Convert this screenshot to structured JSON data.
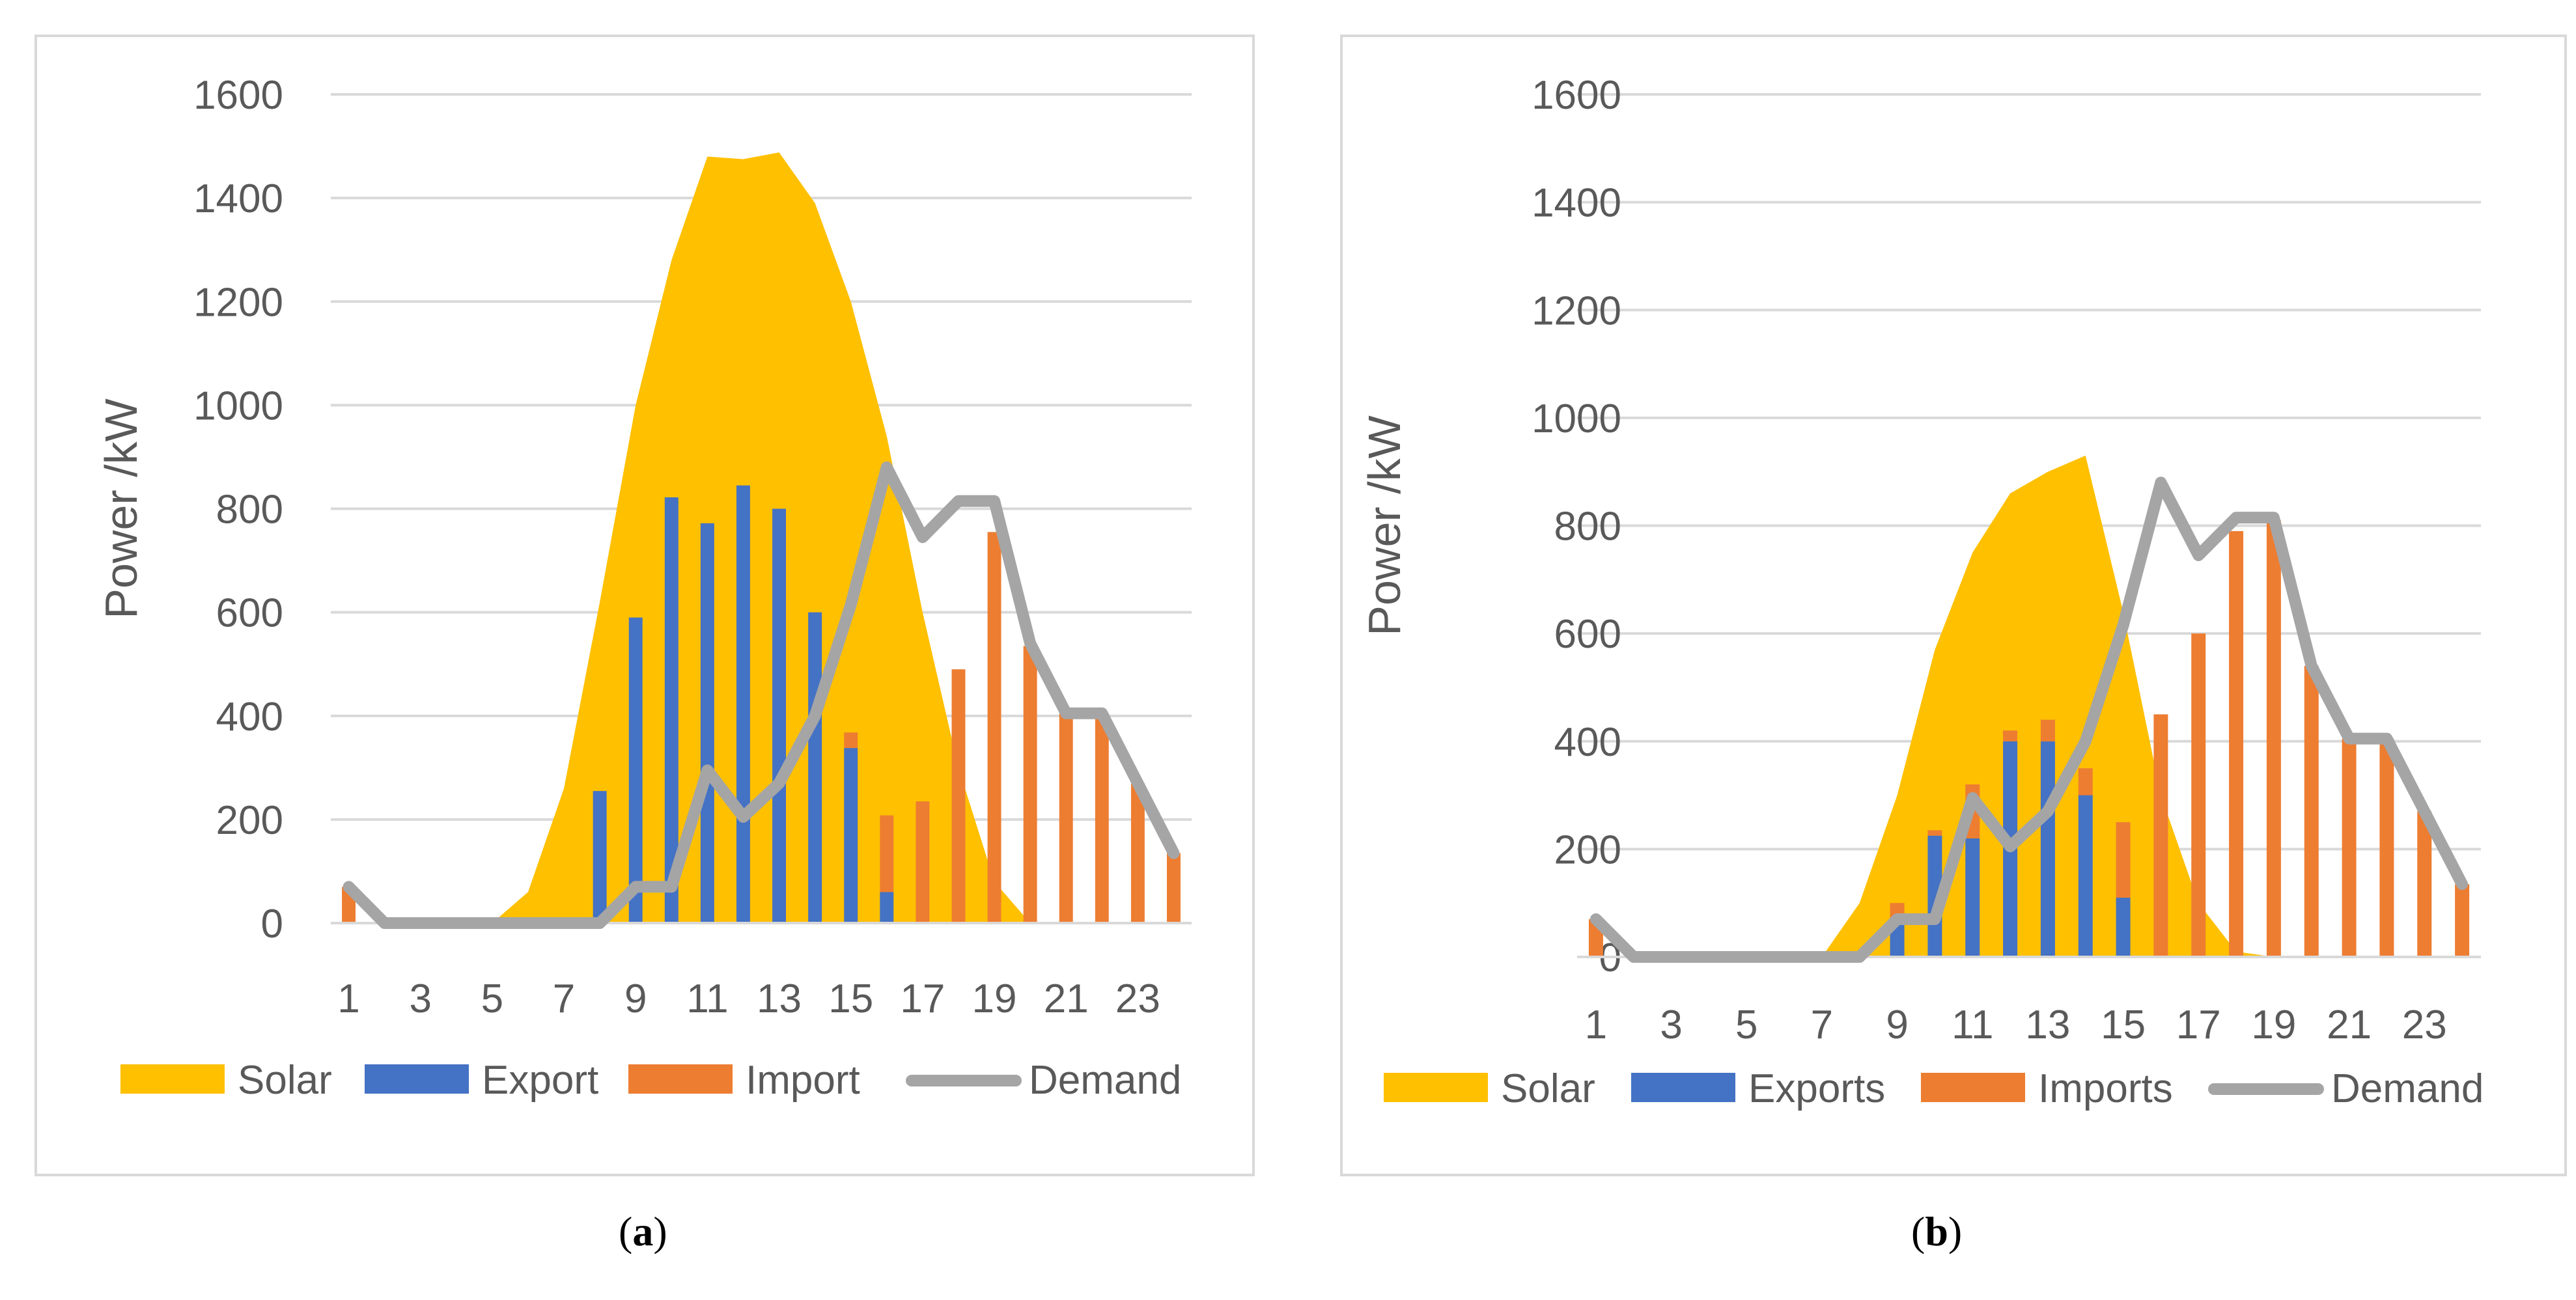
{
  "colors": {
    "solar": "#FFC000",
    "export": "#4472C4",
    "import": "#ED7D31",
    "demand": "#A5A5A5",
    "grid": "#D9D9D9",
    "frame": "#D9D9D9",
    "text": "#595959"
  },
  "chart_data": [
    {
      "type": "area+bar+line",
      "caption": "a",
      "ylabel": "Power /kW",
      "xlabel": "",
      "ylim": [
        0,
        1600
      ],
      "yticks": [
        0,
        200,
        400,
        600,
        800,
        1000,
        1200,
        1400,
        1600
      ],
      "x": [
        1,
        2,
        3,
        4,
        5,
        6,
        7,
        8,
        9,
        10,
        11,
        12,
        13,
        14,
        15,
        16,
        17,
        18,
        19,
        20,
        21,
        22,
        23,
        24
      ],
      "xtick_labels": [
        "1",
        "3",
        "5",
        "7",
        "9",
        "11",
        "13",
        "15",
        "17",
        "19",
        "21",
        "23"
      ],
      "legend": [
        "Solar",
        "Export",
        "Import",
        "Demand"
      ],
      "legend_position": "bottom",
      "series": [
        {
          "name": "Solar",
          "kind": "area",
          "values": [
            0,
            0,
            0,
            0,
            0,
            60,
            260,
            620,
            1000,
            1280,
            1480,
            1475,
            1488,
            1390,
            1200,
            940,
            600,
            300,
            80,
            0,
            0,
            0,
            0,
            0
          ]
        },
        {
          "name": "Export",
          "kind": "bar",
          "values": [
            0,
            0,
            0,
            0,
            0,
            0,
            0,
            255,
            590,
            822,
            772,
            845,
            800,
            600,
            338,
            60,
            0,
            0,
            0,
            0,
            0,
            0,
            0,
            0
          ]
        },
        {
          "name": "Import",
          "kind": "bar",
          "values": [
            70,
            0,
            0,
            0,
            0,
            0,
            0,
            0,
            0,
            0,
            0,
            0,
            0,
            0,
            30,
            148,
            235,
            490,
            755,
            535,
            405,
            405,
            270,
            135
          ]
        },
        {
          "name": "Demand",
          "kind": "line",
          "values": [
            70,
            0,
            0,
            0,
            0,
            0,
            0,
            0,
            70,
            70,
            295,
            205,
            270,
            400,
            615,
            880,
            745,
            815,
            815,
            540,
            405,
            405,
            270,
            135
          ]
        }
      ]
    },
    {
      "type": "area+bar+line",
      "caption": "b",
      "ylabel": "Power /kW",
      "xlabel": "",
      "ylim": [
        0,
        1600
      ],
      "yticks": [
        0,
        200,
        400,
        600,
        800,
        1000,
        1200,
        1400,
        1600
      ],
      "x": [
        1,
        2,
        3,
        4,
        5,
        6,
        7,
        8,
        9,
        10,
        11,
        12,
        13,
        14,
        15,
        16,
        17,
        18,
        19,
        20,
        21,
        22,
        23,
        24
      ],
      "xtick_labels": [
        "1",
        "3",
        "5",
        "7",
        "9",
        "11",
        "13",
        "15",
        "17",
        "19",
        "21",
        "23"
      ],
      "legend": [
        "Solar",
        "Exports",
        "Imports",
        "Demand"
      ],
      "legend_position": "bottom",
      "series": [
        {
          "name": "Solar",
          "kind": "area",
          "values": [
            0,
            0,
            0,
            0,
            0,
            0,
            0,
            100,
            300,
            570,
            750,
            860,
            900,
            930,
            640,
            300,
            100,
            10,
            0,
            0,
            0,
            0,
            0,
            0
          ]
        },
        {
          "name": "Exports",
          "kind": "bar",
          "values": [
            0,
            0,
            0,
            0,
            0,
            0,
            0,
            0,
            60,
            225,
            220,
            400,
            400,
            300,
            110,
            0,
            0,
            0,
            0,
            0,
            0,
            0,
            0,
            0
          ]
        },
        {
          "name": "Imports",
          "kind": "bar",
          "values": [
            70,
            0,
            0,
            0,
            0,
            0,
            0,
            0,
            40,
            10,
            100,
            20,
            40,
            50,
            140,
            450,
            600,
            790,
            810,
            540,
            405,
            405,
            270,
            135
          ]
        },
        {
          "name": "Demand",
          "kind": "line",
          "values": [
            70,
            0,
            0,
            0,
            0,
            0,
            0,
            0,
            70,
            70,
            295,
            205,
            270,
            400,
            615,
            880,
            745,
            815,
            815,
            540,
            405,
            405,
            270,
            135
          ]
        }
      ]
    }
  ]
}
